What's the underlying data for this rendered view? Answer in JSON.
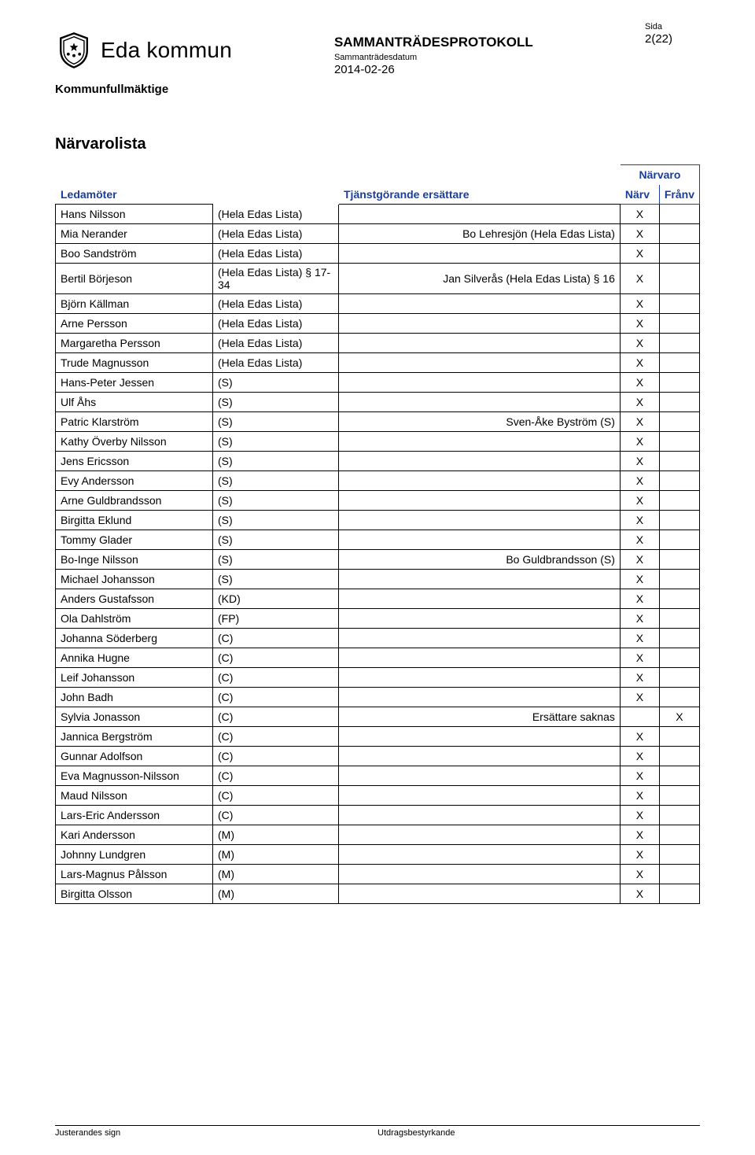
{
  "header": {
    "org_name": "Eda kommun",
    "doc_title": "SAMMANTRÄDESPROTOKOLL",
    "date_label": "Sammanträdesdatum",
    "date": "2014-02-26",
    "sida_label": "Sida",
    "page_number": "2(22)",
    "body_name": "Kommunfullmäktige"
  },
  "section_title": "Närvarolista",
  "table_headers": {
    "ledamoter": "Ledamöter",
    "tjanst": "Tjänstgörande ersättare",
    "narvaro": "Närvaro",
    "narv": "Närv",
    "franv": "Frånv"
  },
  "rows": [
    {
      "name": "Hans Nilsson",
      "party": "(Hela Edas Lista)",
      "sub": "",
      "narv": "X",
      "franv": ""
    },
    {
      "name": "Mia Nerander",
      "party": "(Hela Edas Lista)",
      "sub": "Bo Lehresjön (Hela Edas Lista)",
      "narv": "X",
      "franv": ""
    },
    {
      "name": "Boo Sandström",
      "party": "(Hela Edas Lista)",
      "sub": "",
      "narv": "X",
      "franv": ""
    },
    {
      "name": "Bertil Börjeson",
      "party": "(Hela Edas Lista) § 17-34",
      "sub": "Jan Silverås (Hela Edas Lista) § 16",
      "narv": "X",
      "franv": ""
    },
    {
      "name": "Björn Källman",
      "party": "(Hela Edas Lista)",
      "sub": "",
      "narv": "X",
      "franv": ""
    },
    {
      "name": "Arne Persson",
      "party": "(Hela Edas Lista)",
      "sub": "",
      "narv": "X",
      "franv": ""
    },
    {
      "name": "Margaretha Persson",
      "party": "(Hela Edas Lista)",
      "sub": "",
      "narv": "X",
      "franv": ""
    },
    {
      "name": "Trude Magnusson",
      "party": "(Hela Edas Lista)",
      "sub": "",
      "narv": "X",
      "franv": ""
    },
    {
      "name": "Hans-Peter Jessen",
      "party": "(S)",
      "sub": "",
      "narv": "X",
      "franv": ""
    },
    {
      "name": "Ulf Åhs",
      "party": "(S)",
      "sub": "",
      "narv": "X",
      "franv": ""
    },
    {
      "name": "Patric Klarström",
      "party": "(S)",
      "sub": "Sven-Åke Byström (S)",
      "narv": "X",
      "franv": ""
    },
    {
      "name": "Kathy Överby Nilsson",
      "party": "(S)",
      "sub": "",
      "narv": "X",
      "franv": ""
    },
    {
      "name": "Jens Ericsson",
      "party": "(S)",
      "sub": "",
      "narv": "X",
      "franv": ""
    },
    {
      "name": "Evy Andersson",
      "party": "(S)",
      "sub": "",
      "narv": "X",
      "franv": ""
    },
    {
      "name": "Arne Guldbrandsson",
      "party": "(S)",
      "sub": "",
      "narv": "X",
      "franv": ""
    },
    {
      "name": "Birgitta Eklund",
      "party": "(S)",
      "sub": "",
      "narv": "X",
      "franv": ""
    },
    {
      "name": "Tommy Glader",
      "party": "(S)",
      "sub": "",
      "narv": "X",
      "franv": ""
    },
    {
      "name": "Bo-Inge Nilsson",
      "party": "(S)",
      "sub": "Bo Guldbrandsson (S)",
      "narv": "X",
      "franv": ""
    },
    {
      "name": "Michael Johansson",
      "party": "(S)",
      "sub": "",
      "narv": "X",
      "franv": ""
    },
    {
      "name": "Anders Gustafsson",
      "party": "(KD)",
      "sub": "",
      "narv": "X",
      "franv": ""
    },
    {
      "name": "Ola Dahlström",
      "party": "(FP)",
      "sub": "",
      "narv": "X",
      "franv": ""
    },
    {
      "name": "Johanna Söderberg",
      "party": "(C)",
      "sub": "",
      "narv": "X",
      "franv": ""
    },
    {
      "name": "Annika Hugne",
      "party": "(C)",
      "sub": "",
      "narv": "X",
      "franv": ""
    },
    {
      "name": "Leif Johansson",
      "party": "(C)",
      "sub": "",
      "narv": "X",
      "franv": ""
    },
    {
      "name": "John Badh",
      "party": "(C)",
      "sub": "",
      "narv": "X",
      "franv": ""
    },
    {
      "name": "Sylvia Jonasson",
      "party": "(C)",
      "sub": "Ersättare saknas",
      "narv": "",
      "franv": "X"
    },
    {
      "name": "Jannica Bergström",
      "party": "(C)",
      "sub": "",
      "narv": "X",
      "franv": ""
    },
    {
      "name": "Gunnar Adolfson",
      "party": "(C)",
      "sub": "",
      "narv": "X",
      "franv": ""
    },
    {
      "name": "Eva Magnusson-Nilsson",
      "party": "(C)",
      "sub": "",
      "narv": "X",
      "franv": ""
    },
    {
      "name": "Maud Nilsson",
      "party": "(C)",
      "sub": "",
      "narv": "X",
      "franv": ""
    },
    {
      "name": "Lars-Eric Andersson",
      "party": "(C)",
      "sub": "",
      "narv": "X",
      "franv": ""
    },
    {
      "name": "Kari Andersson",
      "party": "(M)",
      "sub": "",
      "narv": "X",
      "franv": ""
    },
    {
      "name": "Johnny Lundgren",
      "party": "(M)",
      "sub": "",
      "narv": "X",
      "franv": ""
    },
    {
      "name": "Lars-Magnus Pålsson",
      "party": "(M)",
      "sub": "",
      "narv": "X",
      "franv": ""
    },
    {
      "name": "Birgitta Olsson",
      "party": "(M)",
      "sub": "",
      "narv": "X",
      "franv": ""
    }
  ],
  "footer": {
    "left": "Justerandes sign",
    "right": "Utdragsbestyrkande"
  },
  "colors": {
    "header_blue": "#1a3e9c",
    "text": "#000000",
    "background": "#ffffff"
  },
  "fonts": {
    "base_family": "Arial, Helvetica, sans-serif",
    "body_size_pt": 11,
    "title_size_pt": 15
  }
}
